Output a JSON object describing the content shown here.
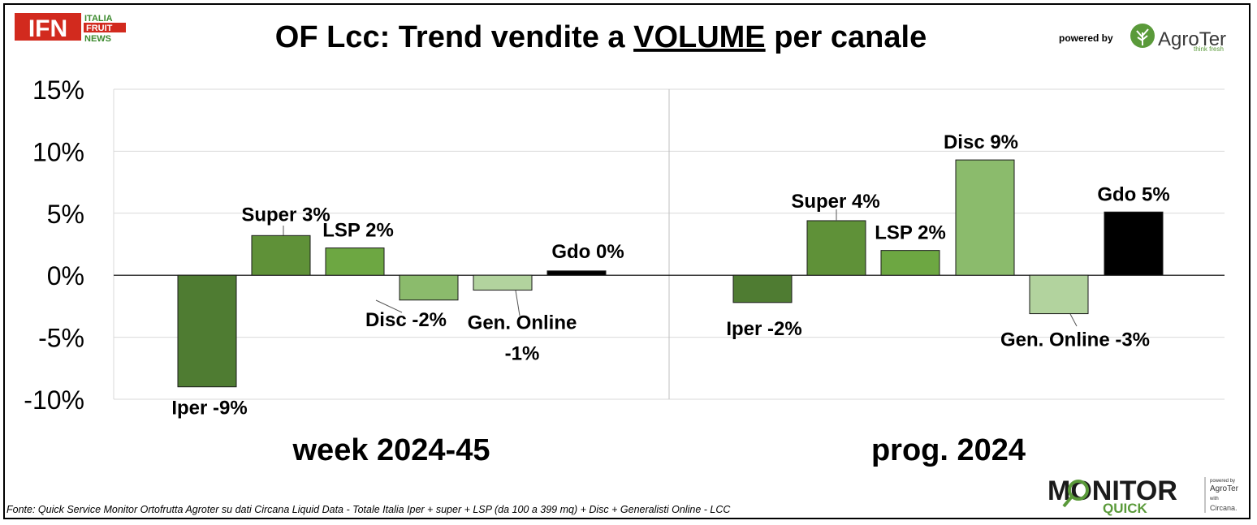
{
  "chart_data": {
    "type": "bar",
    "title_prefix": "OF Lcc: Trend vendite a ",
    "title_emphasis": "VOLUME",
    "title_suffix": " per canale",
    "y_ticks": [
      "15%",
      "10%",
      "5%",
      "0%",
      "-5%",
      "-10%"
    ],
    "ylim": [
      -10,
      15
    ],
    "grid": true,
    "panels": [
      {
        "label": "week 2024-45",
        "bars": [
          {
            "label": "Iper -9%",
            "value": -9,
            "color": "#4f7c32"
          },
          {
            "label": "Super 3%",
            "value": 3.2,
            "color": "#5f9138"
          },
          {
            "label": "LSP 2%",
            "value": 2.2,
            "color": "#6da742"
          },
          {
            "label": "Disc -2%",
            "value": -2.0,
            "color": "#8bbb6c"
          },
          {
            "label": "Gen. Online -1%",
            "value": -1.2,
            "color": "#b2d39e"
          },
          {
            "label": "Gdo 0%",
            "value": 0.35,
            "color": "#000000"
          }
        ]
      },
      {
        "label": "prog. 2024",
        "bars": [
          {
            "label": "Iper -2%",
            "value": -2.2,
            "color": "#4f7c32"
          },
          {
            "label": "Super 4%",
            "value": 4.4,
            "color": "#5f9138"
          },
          {
            "label": "LSP 2%",
            "value": 2.0,
            "color": "#6da742"
          },
          {
            "label": "Disc 9%",
            "value": 9.3,
            "color": "#8bbb6c"
          },
          {
            "label": "Gen. Online -3%",
            "value": -3.1,
            "color": "#b2d39e"
          },
          {
            "label": "Gdo 5%",
            "value": 5.1,
            "color": "#000000"
          }
        ]
      }
    ]
  },
  "branding": {
    "ifn_letters": "IFN",
    "ifn_line1": "ITALIA",
    "ifn_line2": "FRUIT",
    "ifn_line3": "NEWS",
    "powered_by": "powered by",
    "agroter": "AgroTer",
    "agroter_tagline": "think fresh",
    "monitor": "MONITOR",
    "quick": "QUICK",
    "small_powered_by": "powered by",
    "small_agroter": "AgroTer",
    "small_with": "with",
    "circana": "Circana."
  },
  "source_note": "Fonte: Quick Service Monitor Ortofrutta Agroter su dati Circana Liquid Data - Totale Italia Iper + super + LSP (da 100 a 399 mq) + Disc + Generalisti Online - LCC",
  "colors": {
    "gridline": "#d9d9d9",
    "axis": "#000000",
    "ifn_red": "#d22a1e",
    "ifn_green": "#3c8a2e",
    "agroter_green": "#5a9a3a"
  }
}
